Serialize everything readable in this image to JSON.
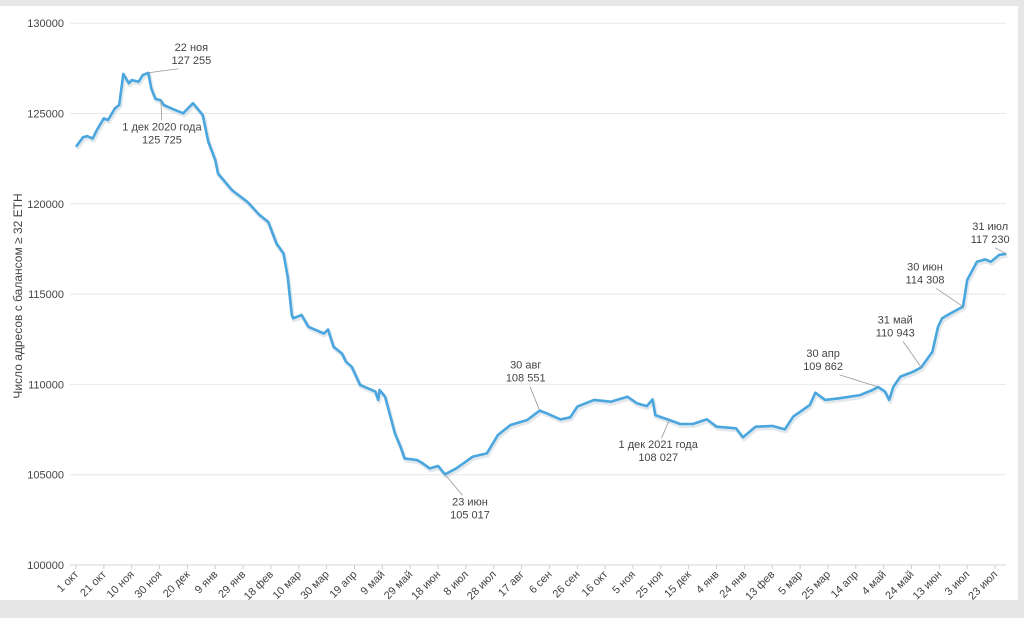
{
  "chart_data": {
    "type": "line",
    "title": "",
    "xlabel": "",
    "ylabel": "Число адресов с балансом ≥ 32 ETH",
    "ylim": [
      100000,
      130000
    ],
    "yticks": [
      100000,
      105000,
      110000,
      115000,
      120000,
      125000,
      130000
    ],
    "grid": true,
    "x_start": "1 окт 2020",
    "x_unit": "days since 1 Oct 2020",
    "xlim": [
      0,
      668
    ],
    "xtick_step_days": 20,
    "xtick_labels": [
      "1 окт",
      "21 окт",
      "10 ноя",
      "30 ноя",
      "20 дек",
      "9 янв",
      "29 янв",
      "18 фев",
      "10 мар",
      "30 мар",
      "19 апр",
      "9 май",
      "29 май",
      "18 июн",
      "8 июл",
      "28 июл",
      "17 авг",
      "6 сен",
      "26 сен",
      "16 окт",
      "5 ноя",
      "25 ноя",
      "15 дек",
      "4 янв",
      "24 янв",
      "13 фев",
      "5 мар",
      "25 мар",
      "14 апр",
      "4 май",
      "24 май",
      "13 июн",
      "3 июл",
      "23 июл"
    ],
    "series": [
      {
        "name": "Число адресов с балансом ≥ 32 ETH",
        "color": "#4aa6df",
        "x": [
          0,
          5,
          8,
          12,
          15,
          20,
          23,
          28,
          31,
          34,
          38,
          40,
          45,
          48,
          52,
          54,
          57,
          61,
          63,
          70,
          77,
          84,
          91,
          95,
          100,
          102,
          112,
          123,
          132,
          138,
          144,
          149,
          152,
          155,
          156,
          162,
          167,
          178,
          181,
          185,
          191,
          194,
          198,
          204,
          215,
          217,
          218,
          222,
          229,
          233,
          236,
          245,
          249,
          254,
          260,
          265,
          273,
          285,
          295,
          303,
          312,
          324,
          333,
          338,
          348,
          355,
          360,
          372,
          384,
          396,
          403,
          410,
          414,
          416,
          426,
          434,
          443,
          453,
          460,
          474,
          479,
          488,
          500,
          509,
          515,
          527,
          531,
          538,
          548,
          563,
          572,
          576,
          581,
          584,
          587,
          592,
          601,
          607,
          615,
          619,
          622,
          628,
          637,
          640,
          647,
          653,
          657,
          663,
          668
        ],
        "y": [
          123160,
          123680,
          123750,
          123610,
          124090,
          124730,
          124640,
          125290,
          125470,
          127190,
          126670,
          126850,
          126760,
          127130,
          127255,
          126400,
          125820,
          125725,
          125470,
          125230,
          125010,
          125570,
          124920,
          123440,
          122420,
          121680,
          120760,
          120110,
          119370,
          119000,
          117800,
          117250,
          115960,
          113840,
          113660,
          113840,
          113190,
          112820,
          113040,
          112080,
          111710,
          111250,
          110980,
          109970,
          109600,
          109140,
          109690,
          109320,
          107290,
          106550,
          105900,
          105810,
          105630,
          105350,
          105480,
          105017,
          105350,
          106000,
          106180,
          107200,
          107750,
          108030,
          108551,
          108400,
          108060,
          108180,
          108770,
          109140,
          109040,
          109320,
          108950,
          108800,
          109170,
          108300,
          108027,
          107810,
          107810,
          108070,
          107660,
          107570,
          107070,
          107660,
          107700,
          107510,
          108210,
          108860,
          109540,
          109140,
          109230,
          109410,
          109690,
          109862,
          109600,
          109140,
          109870,
          110430,
          110700,
          110943,
          111810,
          113190,
          113660,
          113930,
          114308,
          115780,
          116790,
          116920,
          116790,
          117170,
          117230
        ]
      }
    ],
    "annotations": [
      {
        "day": 52,
        "value": 127255,
        "date_label": "22 ноя",
        "value_label": "127 255"
      },
      {
        "day": 61,
        "value": 125725,
        "date_label": "1 дек 2020 года",
        "value_label": "125 725"
      },
      {
        "day": 265,
        "value": 105017,
        "date_label": "23 июн",
        "value_label": "105 017"
      },
      {
        "day": 333,
        "value": 108551,
        "date_label": "30 авг",
        "value_label": "108 551"
      },
      {
        "day": 426,
        "value": 108027,
        "date_label": "1 дек 2021 года",
        "value_label": "108 027"
      },
      {
        "day": 576,
        "value": 109862,
        "date_label": "30 апр",
        "value_label": "109 862"
      },
      {
        "day": 607,
        "value": 110943,
        "date_label": "31 май",
        "value_label": "110 943"
      },
      {
        "day": 637,
        "value": 114308,
        "date_label": "30 июн",
        "value_label": "114 308"
      },
      {
        "day": 668,
        "value": 117230,
        "date_label": "31 июл",
        "value_label": "117 230"
      }
    ]
  }
}
